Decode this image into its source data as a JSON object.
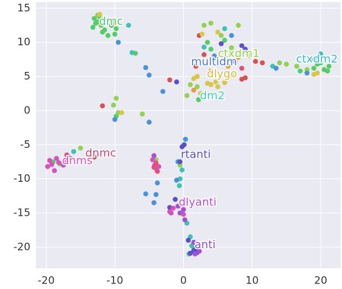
{
  "chart_data": {
    "type": "scatter",
    "xlim": [
      -21.5,
      22.9
    ],
    "ylim": [
      -23.1,
      15.9
    ],
    "xticks": [
      -20,
      -10,
      0,
      10,
      20
    ],
    "yticks": [
      -20,
      -15,
      -10,
      -5,
      0,
      5,
      10,
      15
    ],
    "grid": true,
    "series": [
      {
        "color": "#55cc68",
        "x": [
          -13,
          -12.8,
          -13.2,
          -12.5,
          -12,
          -11.5,
          -10.5,
          -11,
          -12.3,
          -9.8,
          -10,
          -11.8,
          19,
          20.5,
          21,
          19.5,
          17,
          20,
          21.2,
          -19,
          -18,
          -7,
          4,
          3.5,
          6,
          2.2,
          -9.8
        ],
        "y": [
          13.5,
          12.8,
          12.2,
          13,
          12.5,
          11.8,
          12.5,
          11,
          13.8,
          12,
          11.2,
          11.5,
          6.2,
          6,
          5.8,
          6.8,
          5.8,
          7,
          6.5,
          -7.5,
          -7.8,
          8.4,
          9,
          10,
          10.3,
          1.6,
          -0.8
        ]
      },
      {
        "color": "#93d150",
        "x": [
          -12.5,
          -10.2,
          3,
          4,
          5.5,
          8,
          7,
          9,
          14,
          15,
          16.5,
          18,
          -15,
          -9.8,
          -9.5,
          -6,
          -10.2,
          1,
          2,
          0.5,
          -0.5,
          -4
        ],
        "y": [
          14,
          12.8,
          12.5,
          12.8,
          11,
          12.5,
          9.2,
          8.8,
          7,
          6.8,
          6.5,
          6,
          -5.5,
          1.8,
          -0.3,
          -0.5,
          0.8,
          3.8,
          3.5,
          2.2,
          -8,
          -7.2
        ]
      },
      {
        "color": "#3cc3b3",
        "x": [
          -8,
          -7.5,
          6,
          3,
          13,
          19,
          20,
          -16,
          -0.5,
          -0.6,
          -0.2,
          0.5,
          1,
          1.5,
          2,
          0.8,
          1.2
        ],
        "y": [
          12.5,
          8.5,
          12,
          9.3,
          6.5,
          7.5,
          8.3,
          -6,
          -10,
          -11,
          -8.7,
          -16.5,
          -18.5,
          -20,
          -20.7,
          -21,
          -19.8
        ]
      },
      {
        "color": "#4a92d8",
        "x": [
          -9.5,
          -5.5,
          -5,
          -3,
          -5,
          -10,
          -4,
          -5.5,
          -4.3,
          -1,
          -3.8,
          0.3,
          -0.8,
          7,
          4.5,
          13.5,
          18
        ],
        "y": [
          10,
          6.3,
          5.2,
          2.8,
          -1.7,
          -1.3,
          -12.3,
          -12.2,
          -13.5,
          -10.2,
          -10.6,
          -4.2,
          -7.5,
          11,
          8,
          6.2,
          5.5
        ]
      },
      {
        "color": "#5a50c8",
        "x": [
          -1,
          -0.2,
          0.1,
          -0.5,
          -1.2,
          -2,
          0.7,
          1.5,
          2,
          1.8,
          2.2,
          1,
          5.5,
          8.5,
          9
        ],
        "y": [
          4.2,
          -5.3,
          -5,
          -7.5,
          -13,
          -14.2,
          -19,
          -20.5,
          -20.8,
          -20.2,
          -20.4,
          -20.9,
          9.8,
          9.5,
          9
        ]
      },
      {
        "color": "#a350d8",
        "x": [
          -4.3,
          -0.8,
          0,
          -0.5,
          0.2,
          1.5,
          2.3,
          1.7
        ],
        "y": [
          -6.6,
          -14,
          -14.5,
          -15,
          -16,
          -19.3,
          -20.6,
          -21
        ]
      },
      {
        "color": "#d850c0",
        "x": [
          -4.5,
          -4.2,
          -4,
          -3.6,
          -1.5,
          -1.8,
          -2,
          0.2,
          0,
          -19.5,
          -19.8,
          -18.5,
          -17.5,
          -18.8,
          -18.2,
          -17.3,
          -19.2
        ],
        "y": [
          -7.2,
          -8,
          -8.5,
          -8.2,
          -14.3,
          -15,
          -14.8,
          -13.5,
          -15.2,
          -7.3,
          -8.2,
          -7,
          -8,
          -8.8,
          -7.6,
          -7.4,
          -7.9
        ]
      },
      {
        "color": "#e0507a",
        "x": [
          -17,
          -16.5,
          -4,
          -3.8,
          -4.3,
          7.5,
          8.5
        ],
        "y": [
          -6.5,
          -7,
          -7.7,
          -8.9,
          -8.3,
          7.2,
          6.2
        ]
      },
      {
        "color": "#d85050",
        "x": [
          -11.8,
          -2,
          2.3,
          3,
          1.8,
          9,
          10.5,
          11.5,
          8.5,
          -13
        ],
        "y": [
          0.7,
          4.5,
          11,
          8.2,
          6.5,
          4.8,
          7.2,
          7,
          4.6,
          -6.8
        ]
      },
      {
        "color": "#d8c64a",
        "x": [
          -12.2,
          2.7,
          5,
          3.5,
          4,
          5,
          4.7,
          6,
          2,
          1.5,
          2.5,
          9.7,
          19,
          19.5,
          -9
        ],
        "y": [
          14.1,
          11.2,
          11.5,
          4,
          3.8,
          3.5,
          4.2,
          4.1,
          5,
          4.7,
          2.5,
          8,
          5.3,
          5.5,
          -0.3
        ]
      },
      {
        "color": "#e0a04a",
        "x": [
          6.5,
          4,
          7,
          1.5,
          8
        ],
        "y": [
          6.5,
          5.8,
          5.2,
          3,
          7.8
        ]
      }
    ],
    "annotations": [
      {
        "text": "dmc",
        "x": -12.3,
        "y": 13,
        "color": "#4fc96b"
      },
      {
        "text": "ctxdm1",
        "x": 5,
        "y": 8.3,
        "color": "#8fd14f"
      },
      {
        "text": "ctxdm2",
        "x": 16.4,
        "y": 7.5,
        "color": "#3bb8c4"
      },
      {
        "text": "multidm",
        "x": 1.1,
        "y": 7.1,
        "color": "#4a7bc8"
      },
      {
        "text": "dlygo",
        "x": 3.4,
        "y": 5.3,
        "color": "#d0bc40"
      },
      {
        "text": "dm2",
        "x": 2.4,
        "y": 2.1,
        "color": "#3ccfb3"
      },
      {
        "text": "dnmc",
        "x": -14.3,
        "y": -6.3,
        "color": "#c8456e"
      },
      {
        "text": "dnms",
        "x": -17.7,
        "y": -7.4,
        "color": "#d84fb0"
      },
      {
        "text": "rtanti",
        "x": -0.4,
        "y": -6.5,
        "color": "#5a4fc8"
      },
      {
        "text": "dlyanti",
        "x": -0.7,
        "y": -13.5,
        "color": "#b64fd0"
      },
      {
        "text": "anti",
        "x": 1.6,
        "y": -19.7,
        "color": "#8a4fd8"
      }
    ]
  }
}
